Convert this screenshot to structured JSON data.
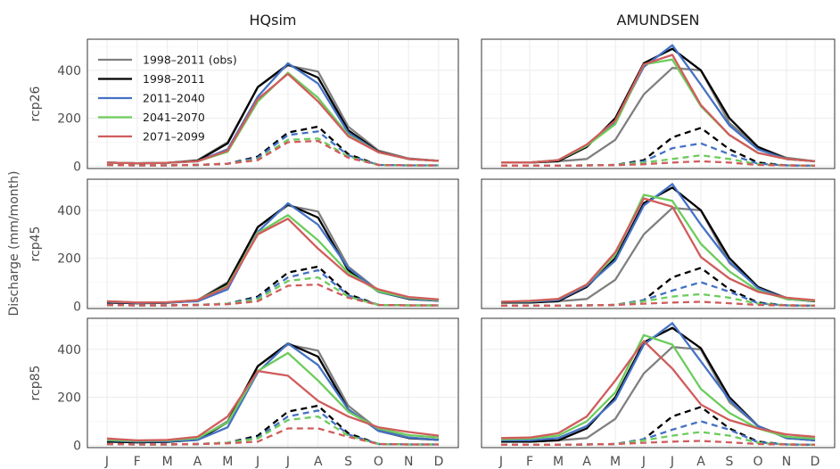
{
  "chart_data": {
    "type": "line",
    "ylabel": "Discharge (mm/month)",
    "x": [
      "J",
      "F",
      "M",
      "A",
      "M",
      "J",
      "J",
      "A",
      "S",
      "O",
      "N",
      "D"
    ],
    "ylim": [
      -10,
      530
    ],
    "yticks": [
      0,
      200,
      400
    ],
    "grid": true,
    "legend_position": "top-left",
    "columns": [
      "HQsim",
      "AMUNDSEN"
    ],
    "rows": [
      "rcp26",
      "rcp45",
      "rcp85"
    ],
    "legend": [
      {
        "name": "1998–2011 (obs)",
        "color": "#7f7f7f"
      },
      {
        "name": "1998–2011",
        "color": "#000000"
      },
      {
        "name": "2011–2040",
        "color": "#4472c4"
      },
      {
        "name": "2041–2070",
        "color": "#6ccc5c"
      },
      {
        "name": "2071–2099",
        "color": "#d05c5c"
      }
    ],
    "panels": [
      {
        "column": "HQsim",
        "row": "rcp26",
        "series": [
          {
            "name": "1998–2011 (obs)",
            "style": "solid",
            "values": [
              15,
              12,
              14,
              25,
              100,
              330,
              420,
              395,
              165,
              65,
              32,
              22
            ]
          },
          {
            "name": "1998–2011",
            "style": "solid",
            "values": [
              15,
              12,
              14,
              22,
              95,
              330,
              425,
              370,
              150,
              60,
              30,
              22
            ]
          },
          {
            "name": "2011–2040",
            "style": "solid",
            "values": [
              15,
              12,
              14,
              20,
              70,
              290,
              430,
              345,
              140,
              58,
              30,
              22
            ]
          },
          {
            "name": "2041–2070",
            "style": "solid",
            "values": [
              15,
              12,
              14,
              20,
              60,
              270,
              390,
              285,
              130,
              58,
              30,
              22
            ]
          },
          {
            "name": "2071–2099",
            "style": "solid",
            "values": [
              15,
              12,
              14,
              20,
              65,
              280,
              385,
              270,
              125,
              58,
              30,
              22
            ]
          },
          {
            "name": "1998–2011",
            "style": "dashed",
            "values": [
              5,
              3,
              3,
              5,
              10,
              40,
              140,
              165,
              50,
              5,
              3,
              3
            ]
          },
          {
            "name": "2011–2040",
            "style": "dashed",
            "values": [
              5,
              3,
              3,
              5,
              10,
              35,
              130,
              145,
              45,
              5,
              3,
              3
            ]
          },
          {
            "name": "2041–2070",
            "style": "dashed",
            "values": [
              5,
              3,
              3,
              5,
              10,
              28,
              110,
              115,
              40,
              5,
              3,
              3
            ]
          },
          {
            "name": "2071–2099",
            "style": "dashed",
            "values": [
              5,
              3,
              3,
              5,
              10,
              25,
              100,
              105,
              35,
              5,
              3,
              3
            ]
          }
        ]
      },
      {
        "column": "AMUNDSEN",
        "row": "rcp26",
        "series": [
          {
            "name": "1998–2011 (obs)",
            "style": "solid",
            "values": [
              15,
              15,
              20,
              30,
              110,
              300,
              410,
              400,
              180,
              80,
              35,
              20
            ]
          },
          {
            "name": "1998–2011",
            "style": "solid",
            "values": [
              15,
              15,
              20,
              80,
              200,
              430,
              490,
              400,
              200,
              80,
              30,
              20
            ]
          },
          {
            "name": "2011–2040",
            "style": "solid",
            "values": [
              15,
              15,
              25,
              85,
              185,
              415,
              505,
              340,
              170,
              70,
              30,
              20
            ]
          },
          {
            "name": "2041–2070",
            "style": "solid",
            "values": [
              15,
              15,
              25,
              85,
              175,
              425,
              445,
              250,
              130,
              55,
              30,
              20
            ]
          },
          {
            "name": "2071–2099",
            "style": "solid",
            "values": [
              15,
              15,
              25,
              90,
              190,
              425,
              465,
              255,
              130,
              55,
              30,
              20
            ]
          },
          {
            "name": "1998–2011",
            "style": "dashed",
            "values": [
              2,
              2,
              2,
              3,
              5,
              25,
              120,
              160,
              70,
              15,
              3,
              2
            ]
          },
          {
            "name": "2011–2040",
            "style": "dashed",
            "values": [
              2,
              2,
              2,
              3,
              5,
              20,
              75,
              95,
              50,
              10,
              3,
              2
            ]
          },
          {
            "name": "2041–2070",
            "style": "dashed",
            "values": [
              2,
              2,
              2,
              3,
              5,
              15,
              30,
              45,
              30,
              8,
              3,
              2
            ]
          },
          {
            "name": "2071–2099",
            "style": "dashed",
            "values": [
              2,
              2,
              2,
              3,
              4,
              8,
              15,
              20,
              15,
              5,
              3,
              2
            ]
          }
        ]
      },
      {
        "column": "HQsim",
        "row": "rcp45",
        "series": [
          {
            "name": "1998–2011 (obs)",
            "style": "solid",
            "values": [
              15,
              12,
              14,
              25,
              100,
              330,
              420,
              395,
              165,
              65,
              32,
              22
            ]
          },
          {
            "name": "1998–2011",
            "style": "solid",
            "values": [
              15,
              12,
              14,
              22,
              95,
              330,
              425,
              370,
              150,
              60,
              30,
              22
            ]
          },
          {
            "name": "2011–2040",
            "style": "solid",
            "values": [
              18,
              13,
              15,
              20,
              70,
              310,
              430,
              340,
              160,
              60,
              32,
              22
            ]
          },
          {
            "name": "2041–2070",
            "style": "solid",
            "values": [
              20,
              15,
              16,
              25,
              85,
              305,
              380,
              275,
              140,
              62,
              35,
              25
            ]
          },
          {
            "name": "2071–2099",
            "style": "solid",
            "values": [
              20,
              15,
              16,
              25,
              80,
              300,
              365,
              240,
              130,
              70,
              38,
              28
            ]
          },
          {
            "name": "1998–2011",
            "style": "dashed",
            "values": [
              5,
              3,
              3,
              5,
              10,
              40,
              140,
              165,
              50,
              5,
              3,
              3
            ]
          },
          {
            "name": "2011–2040",
            "style": "dashed",
            "values": [
              5,
              3,
              3,
              5,
              10,
              35,
              120,
              150,
              45,
              5,
              3,
              3
            ]
          },
          {
            "name": "2041–2070",
            "style": "dashed",
            "values": [
              5,
              3,
              3,
              5,
              10,
              28,
              105,
              120,
              40,
              5,
              3,
              3
            ]
          },
          {
            "name": "2071–2099",
            "style": "dashed",
            "values": [
              5,
              3,
              3,
              5,
              8,
              20,
              85,
              90,
              35,
              5,
              3,
              3
            ]
          }
        ]
      },
      {
        "column": "AMUNDSEN",
        "row": "rcp45",
        "series": [
          {
            "name": "1998–2011 (obs)",
            "style": "solid",
            "values": [
              15,
              15,
              20,
              30,
              110,
              300,
              410,
              400,
              180,
              80,
              35,
              20
            ]
          },
          {
            "name": "1998–2011",
            "style": "solid",
            "values": [
              15,
              15,
              20,
              80,
              200,
              430,
              495,
              400,
              200,
              80,
              30,
              20
            ]
          },
          {
            "name": "2011–2040",
            "style": "solid",
            "values": [
              18,
              18,
              25,
              85,
              190,
              420,
              510,
              340,
              185,
              75,
              30,
              22
            ]
          },
          {
            "name": "2041–2070",
            "style": "solid",
            "values": [
              18,
              20,
              30,
              90,
              215,
              465,
              440,
              260,
              145,
              65,
              30,
              22
            ]
          },
          {
            "name": "2071–2099",
            "style": "solid",
            "values": [
              18,
              22,
              30,
              90,
              225,
              450,
              415,
              205,
              115,
              60,
              35,
              25
            ]
          },
          {
            "name": "1998–2011",
            "style": "dashed",
            "values": [
              2,
              2,
              2,
              3,
              5,
              25,
              120,
              160,
              70,
              15,
              3,
              2
            ]
          },
          {
            "name": "2011–2040",
            "style": "dashed",
            "values": [
              2,
              2,
              2,
              3,
              5,
              25,
              65,
              100,
              60,
              12,
              3,
              2
            ]
          },
          {
            "name": "2041–2070",
            "style": "dashed",
            "values": [
              2,
              2,
              2,
              3,
              5,
              20,
              40,
              50,
              35,
              10,
              3,
              2
            ]
          },
          {
            "name": "2071–2099",
            "style": "dashed",
            "values": [
              2,
              2,
              2,
              3,
              5,
              10,
              15,
              18,
              12,
              5,
              3,
              2
            ]
          }
        ]
      },
      {
        "column": "HQsim",
        "row": "rcp85",
        "series": [
          {
            "name": "1998–2011 (obs)",
            "style": "solid",
            "values": [
              15,
              12,
              14,
              25,
              100,
              330,
              420,
              395,
              165,
              65,
              32,
              22
            ]
          },
          {
            "name": "1998–2011",
            "style": "solid",
            "values": [
              15,
              12,
              14,
              22,
              95,
              330,
              425,
              370,
              150,
              60,
              30,
              22
            ]
          },
          {
            "name": "2011–2040",
            "style": "solid",
            "values": [
              20,
              15,
              16,
              22,
              75,
              305,
              425,
              335,
              150,
              60,
              32,
              22
            ]
          },
          {
            "name": "2041–2070",
            "style": "solid",
            "values": [
              22,
              18,
              20,
              30,
              95,
              310,
              385,
              270,
              140,
              70,
              42,
              32
            ]
          },
          {
            "name": "2071–2099",
            "style": "solid",
            "values": [
              28,
              20,
              22,
              35,
              120,
              310,
              290,
              185,
              120,
              75,
              55,
              40
            ]
          },
          {
            "name": "1998–2011",
            "style": "dashed",
            "values": [
              5,
              3,
              3,
              5,
              10,
              40,
              140,
              165,
              50,
              5,
              3,
              3
            ]
          },
          {
            "name": "2011–2040",
            "style": "dashed",
            "values": [
              5,
              3,
              3,
              5,
              10,
              32,
              120,
              145,
              45,
              5,
              3,
              3
            ]
          },
          {
            "name": "2041–2070",
            "style": "dashed",
            "values": [
              5,
              3,
              3,
              5,
              10,
              28,
              105,
              120,
              40,
              5,
              3,
              3
            ]
          },
          {
            "name": "2071–2099",
            "style": "dashed",
            "values": [
              5,
              3,
              3,
              5,
              8,
              15,
              70,
              70,
              35,
              5,
              3,
              3
            ]
          }
        ]
      },
      {
        "column": "AMUNDSEN",
        "row": "rcp85",
        "series": [
          {
            "name": "1998–2011 (obs)",
            "style": "solid",
            "values": [
              15,
              15,
              20,
              30,
              110,
              300,
              410,
              400,
              180,
              80,
              35,
              20
            ]
          },
          {
            "name": "1998–2011",
            "style": "solid",
            "values": [
              15,
              15,
              20,
              70,
              200,
              430,
              490,
              405,
              200,
              80,
              30,
              20
            ]
          },
          {
            "name": "2011–2040",
            "style": "solid",
            "values": [
              20,
              20,
              30,
              80,
              190,
              420,
              510,
              350,
              190,
              80,
              30,
              20
            ]
          },
          {
            "name": "2041–2070",
            "style": "solid",
            "values": [
              25,
              28,
              40,
              100,
              220,
              460,
              420,
              235,
              135,
              70,
              35,
              28
            ]
          },
          {
            "name": "2071–2099",
            "style": "solid",
            "values": [
              30,
              32,
              50,
              120,
              270,
              435,
              320,
              170,
              105,
              70,
              45,
              35
            ]
          },
          {
            "name": "1998–2011",
            "style": "dashed",
            "values": [
              2,
              2,
              2,
              3,
              5,
              25,
              120,
              160,
              70,
              15,
              3,
              2
            ]
          },
          {
            "name": "2011–2040",
            "style": "dashed",
            "values": [
              2,
              2,
              2,
              3,
              5,
              25,
              65,
              100,
              65,
              12,
              3,
              2
            ]
          },
          {
            "name": "2041–2070",
            "style": "dashed",
            "values": [
              2,
              2,
              2,
              3,
              5,
              20,
              40,
              55,
              40,
              10,
              3,
              2
            ]
          },
          {
            "name": "2071–2099",
            "style": "dashed",
            "values": [
              2,
              2,
              2,
              3,
              5,
              10,
              15,
              18,
              12,
              5,
              3,
              2
            ]
          }
        ]
      }
    ]
  }
}
